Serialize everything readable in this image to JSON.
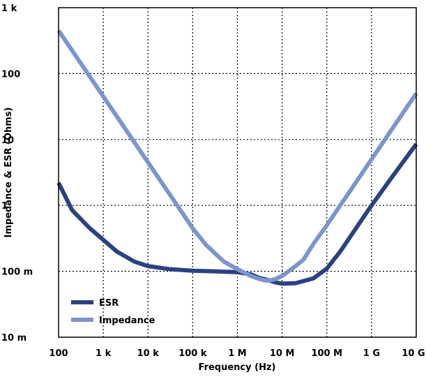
{
  "chart_data": {
    "type": "line",
    "title": "",
    "xlabel": "Frequency (Hz)",
    "ylabel": "Impedance & ESR (Ohms)",
    "x_scale": "log",
    "y_scale": "log",
    "xlim": [
      100,
      10000000000
    ],
    "ylim": [
      0.01,
      1000
    ],
    "grid": true,
    "legend_position": "bottom-left",
    "x_ticks": [
      {
        "value": 100,
        "label": "100"
      },
      {
        "value": 1000,
        "label": "1 k"
      },
      {
        "value": 10000,
        "label": "10 k"
      },
      {
        "value": 100000,
        "label": "100 k"
      },
      {
        "value": 1000000,
        "label": "1 M"
      },
      {
        "value": 10000000,
        "label": "10 M"
      },
      {
        "value": 100000000,
        "label": "100 M"
      },
      {
        "value": 1000000000,
        "label": "1 G"
      },
      {
        "value": 10000000000,
        "label": "10 G"
      }
    ],
    "y_ticks": [
      {
        "value": 0.01,
        "label": "10 m"
      },
      {
        "value": 0.1,
        "label": "100 m"
      },
      {
        "value": 1,
        "label": "1"
      },
      {
        "value": 10,
        "label": "10"
      },
      {
        "value": 100,
        "label": "100"
      },
      {
        "value": 1000,
        "label": "1 k"
      }
    ],
    "series": [
      {
        "name": "ESR",
        "color": "#2a4182",
        "x": [
          100,
          200,
          500,
          1000,
          2000,
          5000,
          10000,
          30000,
          100000,
          300000,
          1000000,
          2000000,
          3000000,
          5000000,
          7000000,
          10000000,
          20000000,
          50000000,
          100000000,
          200000000,
          500000000,
          1000000000,
          3000000000,
          10000000000
        ],
        "y": [
          2.2,
          0.85,
          0.45,
          0.3,
          0.2,
          0.14,
          0.12,
          0.108,
          0.102,
          0.1,
          0.097,
          0.09,
          0.08,
          0.073,
          0.068,
          0.065,
          0.066,
          0.078,
          0.11,
          0.2,
          0.5,
          1.0,
          2.8,
          8.5
        ]
      },
      {
        "name": "Impedance",
        "color": "#7b96cc",
        "x": [
          100,
          1000,
          10000,
          100000,
          200000,
          500000,
          1000000,
          2000000,
          3000000,
          4000000,
          5000000,
          7000000,
          10000000,
          20000000,
          30000000,
          50000000,
          100000000,
          1000000000,
          10000000000
        ],
        "y": [
          450,
          45,
          4.5,
          0.45,
          0.25,
          0.14,
          0.108,
          0.085,
          0.077,
          0.073,
          0.072,
          0.076,
          0.085,
          0.12,
          0.15,
          0.26,
          0.5,
          5,
          50
        ]
      }
    ]
  }
}
